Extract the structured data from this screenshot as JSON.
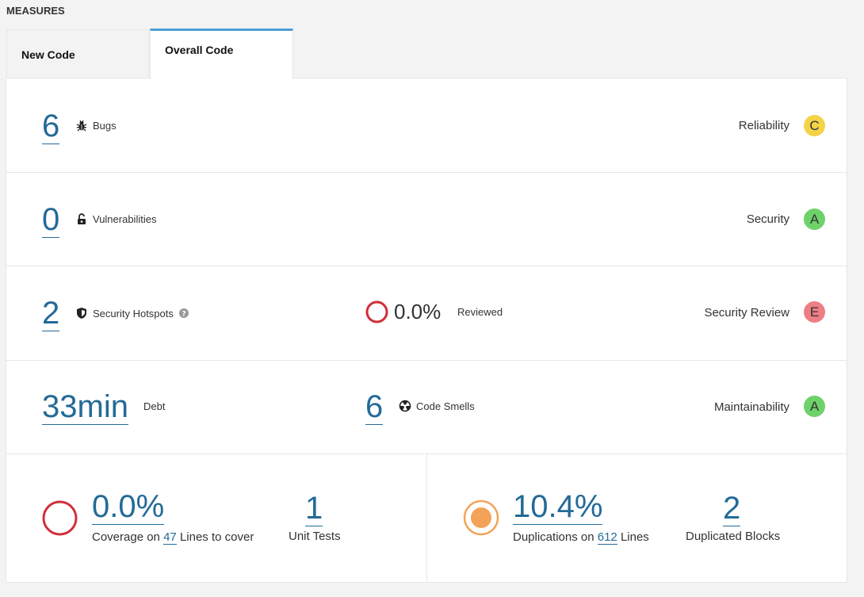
{
  "section_title": "MEASURES",
  "tabs": [
    {
      "label": "New Code",
      "active": false
    },
    {
      "label": "Overall Code",
      "active": true
    }
  ],
  "reliability": {
    "value": "6",
    "label": "Bugs",
    "rating_label": "Reliability",
    "rating": "C",
    "rating_color": "#f4d348"
  },
  "security": {
    "value": "0",
    "label": "Vulnerabilities",
    "rating_label": "Security",
    "rating": "A",
    "rating_color": "#6ed26a"
  },
  "hotspots": {
    "value": "2",
    "label": "Security Hotspots",
    "reviewed_value": "0.0%",
    "reviewed_label": "Reviewed",
    "rating_label": "Security Review",
    "rating": "E",
    "rating_color": "#ee7d84"
  },
  "maintainability": {
    "debt_value": "33min",
    "debt_label": "Debt",
    "smells_value": "6",
    "smells_label": "Code Smells",
    "rating_label": "Maintainability",
    "rating": "A",
    "rating_color": "#6ed26a"
  },
  "coverage": {
    "value": "0.0%",
    "prefix": "Coverage on",
    "lines_value": "47",
    "lines_suffix": "Lines to cover",
    "unit_tests_value": "1",
    "unit_tests_label": "Unit Tests"
  },
  "duplications": {
    "value": "10.4%",
    "prefix": "Duplications on",
    "lines_value": "612",
    "lines_suffix": "Lines",
    "blocks_value": "2",
    "blocks_label": "Duplicated Blocks"
  }
}
